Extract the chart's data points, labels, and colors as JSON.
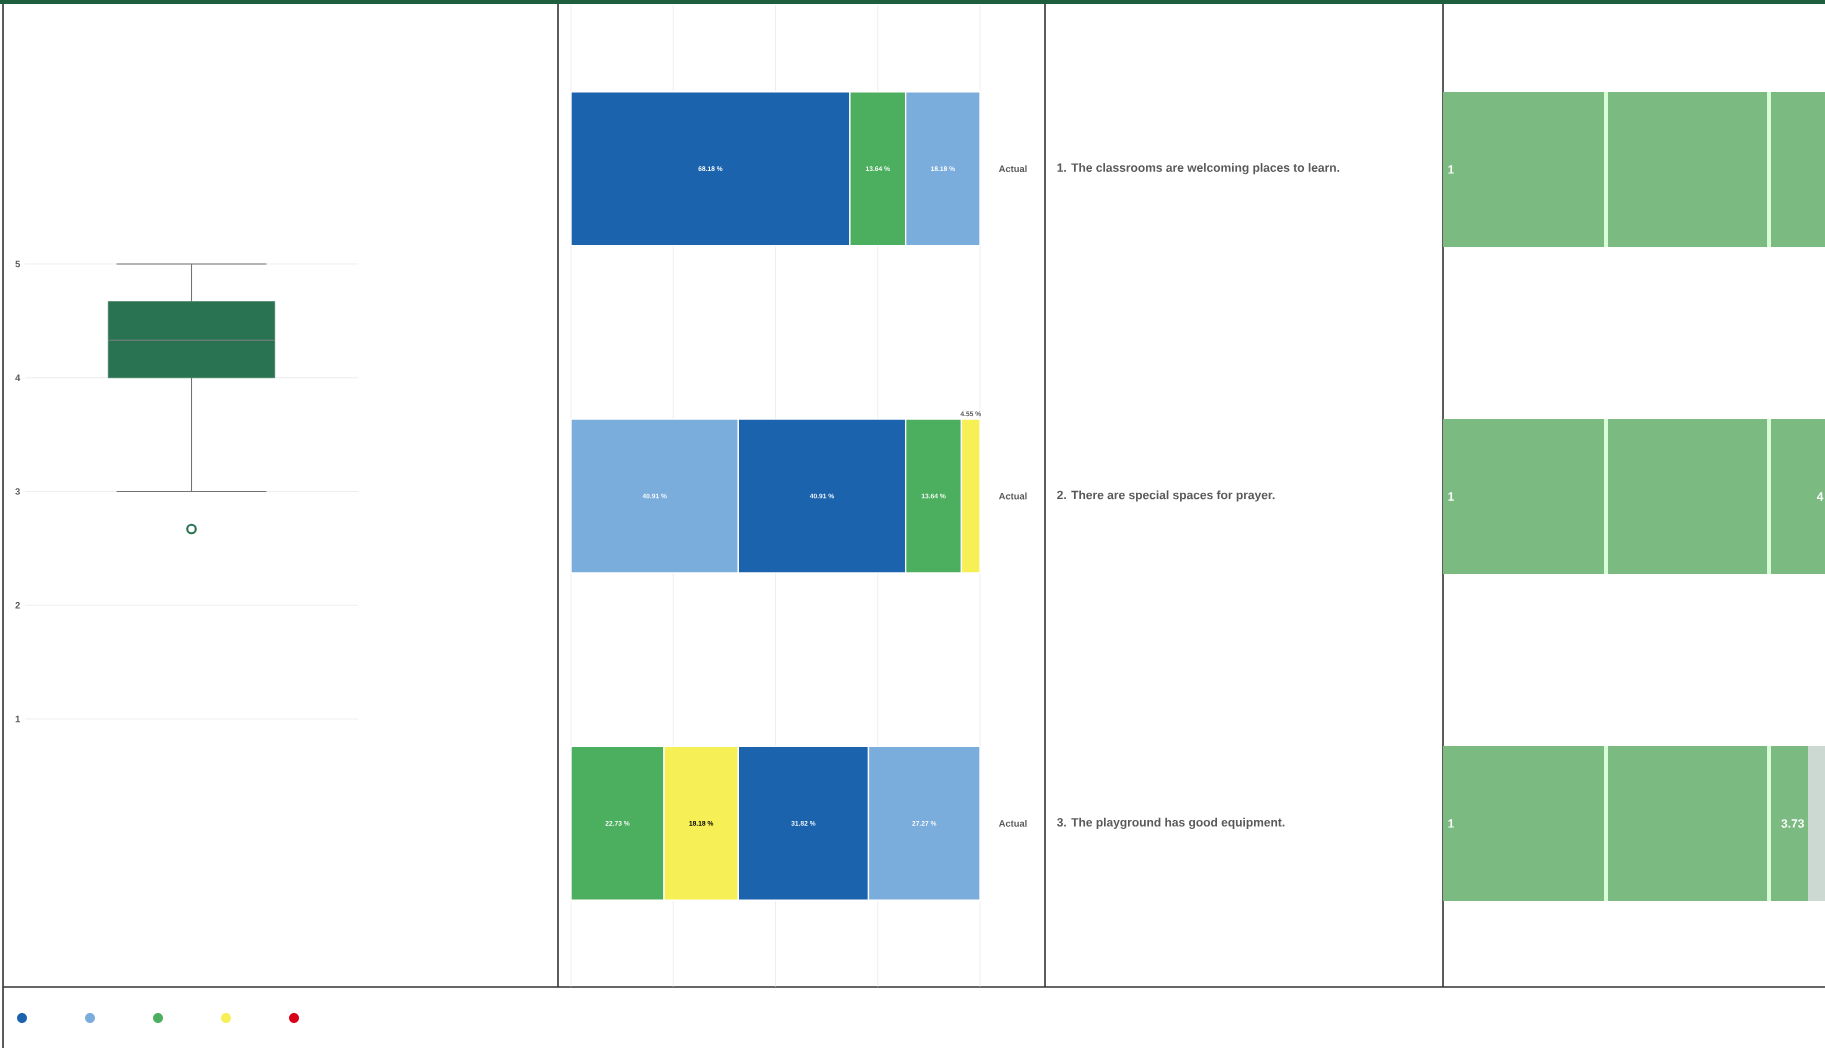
{
  "chart_data": [
    {
      "type": "box",
      "categories": [
        null
      ],
      "color": "#2a7352",
      "boxes": [
        {
          "low": 3,
          "q1": 4,
          "median": 4.33,
          "q3": 4.67,
          "high": 5,
          "outliers": [
            2.67
          ]
        }
      ],
      "ylim": [
        1,
        5
      ],
      "yticks": [
        1,
        2,
        3,
        4,
        5
      ],
      "grid": "y",
      "tick_labels": "y"
    },
    {
      "type": "bar",
      "orientation": "horizontal",
      "stacked": true,
      "categories": [
        "1. The classrooms are welcoming places to learn.",
        "2. There are special spaces for prayer.",
        "3. The playground has good equipment."
      ],
      "series": [
        {
          "colors": [
            "#1b63ad",
            "#7aaddc",
            "#4caf5f"
          ],
          "values": [
            68.18,
            40.91,
            22.73
          ],
          "value_labels": [
            "68.18 %",
            "40.91 %",
            "22.73 %"
          ]
        },
        {
          "colors": [
            "#4caf5f",
            "#1b63ad",
            "#f6ef56"
          ],
          "values": [
            13.64,
            40.91,
            18.18
          ],
          "value_labels": [
            "13.64 %",
            "40.91 %",
            "18.18 %"
          ]
        },
        {
          "colors": [
            "#7aaddc",
            "#4caf5f",
            "#1b63ad"
          ],
          "values": [
            18.18,
            13.64,
            31.82
          ],
          "value_labels": [
            "18.18 %",
            "13.64 %",
            "31.82 %"
          ]
        },
        {
          "colors": [
            null,
            "#f6ef56",
            "#7aaddc"
          ],
          "values": [
            null,
            4.55,
            27.27
          ],
          "value_labels": [
            null,
            "4.55 %",
            "27.27 %"
          ]
        }
      ],
      "xlim": [
        0,
        100
      ],
      "xticks": [
        {
          "value": 0,
          "label": null
        },
        {
          "value": 25,
          "label": null
        },
        {
          "value": 50,
          "label": null
        },
        {
          "value": 75,
          "label": null
        },
        {
          "value": 100,
          "label": null
        }
      ],
      "grid": "x",
      "tick_labels": "y",
      "annotations": [
        "Actual",
        "Actual",
        "Actual"
      ]
    },
    {
      "type": "other",
      "annotations": [
        "1",
        "1",
        "1",
        "4",
        "3.73"
      ]
    }
  ]
}
